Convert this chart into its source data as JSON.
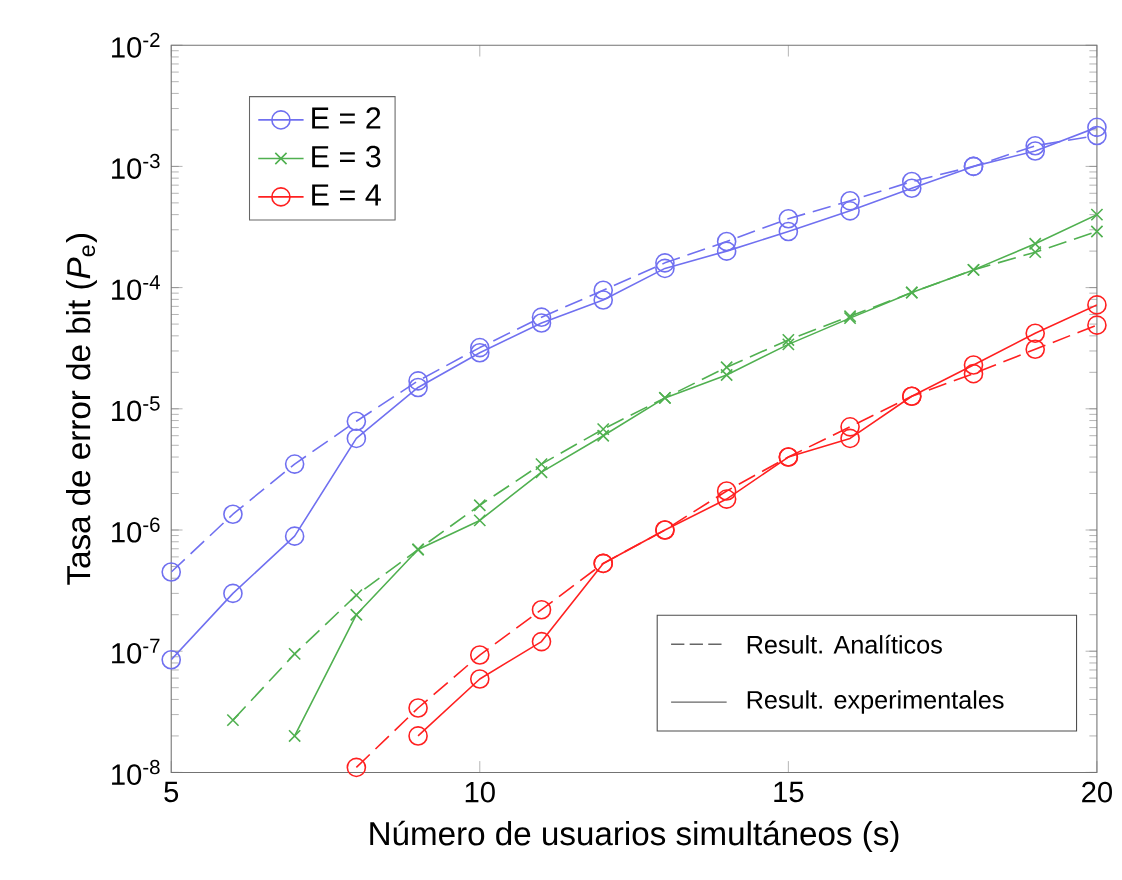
{
  "chart_data": {
    "type": "line",
    "xlabel": "Número de usuarios simultáneos (s)",
    "ylabel": "Tasa de error de bit (*P*$_{e}$)",
    "x": [
      5,
      6,
      7,
      8,
      9,
      10,
      11,
      12,
      13,
      14,
      15,
      16,
      17,
      18,
      19,
      20
    ],
    "xlim": [
      5,
      20
    ],
    "xticks": [
      5,
      10,
      15,
      20
    ],
    "ylim": [
      1e-08,
      0.01
    ],
    "log": "y",
    "yticks": [
      {
        "value": 1e-08,
        "label": "10$^{-8}$"
      },
      {
        "value": 1e-07,
        "label": "10$^{-7}$"
      },
      {
        "value": 1e-06,
        "label": "10$^{-6}$"
      },
      {
        "value": 1e-05,
        "label": "10$^{-5}$"
      },
      {
        "value": 0.0001,
        "label": "10$^{-4}$"
      },
      {
        "value": 0.001,
        "label": "10$^{-3}$"
      },
      {
        "value": 0.01,
        "label": "10$^{-2}$"
      }
    ],
    "grid": false,
    "legend": "top left",
    "series": [
      {
        "color": "#7070f0",
        "marker": "circle",
        "line_style": "dashed",
        "values": [
          4.5e-07,
          1.35e-06,
          3.5e-06,
          7.9e-06,
          1.7e-05,
          3.2e-05,
          5.7e-05,
          9.5e-05,
          0.00016,
          0.00024,
          0.00037,
          0.00052,
          0.00075,
          0.001,
          0.00148,
          0.0018
        ]
      },
      {
        "name": "E = 2",
        "color": "#7070f0",
        "marker": "circle",
        "line_style": "solid",
        "values": [
          8.5e-08,
          3e-07,
          8.9e-07,
          5.7e-06,
          1.5e-05,
          2.9e-05,
          5.1e-05,
          7.9e-05,
          0.000144,
          0.0002,
          0.00029,
          0.00043,
          0.00066,
          0.001,
          0.00134,
          0.0021
        ]
      },
      {
        "color": "#50b050",
        "marker": "cross",
        "line_style": "dashed",
        "values": [
          null,
          2.7e-08,
          9.5e-08,
          2.9e-07,
          6.9e-07,
          1.6e-06,
          3.5e-06,
          6.8e-06,
          1.23e-05,
          2.2e-05,
          3.7e-05,
          5.8e-05,
          9.1e-05,
          0.00014,
          0.000196,
          0.00029
        ]
      },
      {
        "name": "E = 3",
        "color": "#50b050",
        "marker": "cross",
        "line_style": "solid",
        "values": [
          null,
          null,
          2e-08,
          2e-07,
          6.9e-07,
          1.2e-06,
          3e-06,
          6e-06,
          1.23e-05,
          1.9e-05,
          3.4e-05,
          5.6e-05,
          9.1e-05,
          0.00014,
          0.00023,
          0.0004
        ]
      },
      {
        "color": "#ff2020",
        "marker": "circle",
        "line_style": "dashed",
        "values": [
          null,
          null,
          null,
          1.1e-08,
          3.4e-08,
          9.3e-08,
          2.2e-07,
          5.3e-07,
          1e-06,
          2.1e-06,
          4e-06,
          7.1e-06,
          1.27e-05,
          1.95e-05,
          3.1e-05,
          4.9e-05
        ]
      },
      {
        "name": "E = 4",
        "color": "#ff2020",
        "marker": "circle",
        "line_style": "solid",
        "values": [
          null,
          null,
          null,
          null,
          2e-08,
          5.9e-08,
          1.2e-07,
          5.3e-07,
          1e-06,
          1.8e-06,
          4e-06,
          5.7e-06,
          1.27e-05,
          2.3e-05,
          4.2e-05,
          7.2e-05
        ]
      }
    ],
    "annotations": [
      "Result. Analíticos",
      "Result. experimentales"
    ]
  }
}
